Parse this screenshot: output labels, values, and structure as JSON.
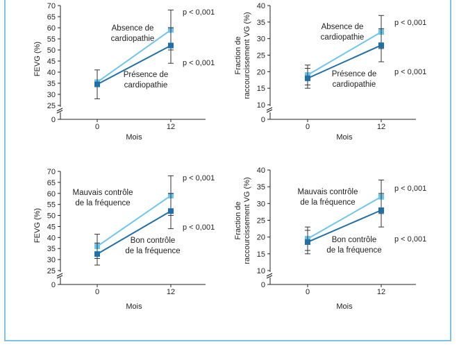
{
  "colors": {
    "light": "#6cc5ec",
    "dark": "#1f6fa8",
    "border": "#7cc4e4",
    "axis": "#222222"
  },
  "caption": "",
  "chart_data": [
    {
      "type": "line",
      "ylabel": "FEVG (%)",
      "xlabel": "Mois",
      "categories": [
        "0",
        "12"
      ],
      "ylim": [
        25,
        70
      ],
      "yticks": [
        25,
        30,
        35,
        40,
        45,
        50,
        55,
        60,
        65,
        70
      ],
      "axis_break": true,
      "series": [
        {
          "name": "Absence de cardiopathie",
          "color": "light",
          "values": [
            35.5,
            59
          ],
          "errors": [
            null,
            9
          ]
        },
        {
          "name": "Présence de cardiopathie",
          "color": "dark",
          "values": [
            34.5,
            52
          ],
          "errors": [
            6.5,
            8
          ]
        }
      ],
      "annotations": {
        "light": [
          "Absence de",
          "cardiopathie"
        ],
        "dark": [
          "Présence de",
          "cardiopathie"
        ]
      },
      "pvalues": [
        "p < 0,001",
        "p < 0,001"
      ]
    },
    {
      "type": "line",
      "ylabel": "Fraction de raccourcissement VG (%)",
      "xlabel": "Mois",
      "categories": [
        "0",
        "12"
      ],
      "ylim": [
        10,
        40
      ],
      "yticks": [
        10,
        15,
        20,
        25,
        30,
        35,
        40
      ],
      "axis_break": true,
      "series": [
        {
          "name": "Absence de cardiopathie",
          "color": "light",
          "values": [
            19,
            32
          ],
          "errors": [
            3,
            5
          ]
        },
        {
          "name": "Présence de cardiopathie",
          "color": "dark",
          "values": [
            18,
            28
          ],
          "errors": [
            3,
            5
          ]
        }
      ],
      "annotations": {
        "light": [
          "Absence de",
          "cardiopathie"
        ],
        "dark": [
          "Présence de",
          "cardiopathie"
        ]
      },
      "pvalues": [
        "p < 0,001",
        "p < 0,001"
      ]
    },
    {
      "type": "line",
      "ylabel": "FEVG (%)",
      "xlabel": "Mois",
      "categories": [
        "0",
        "12"
      ],
      "ylim": [
        25,
        70
      ],
      "yticks": [
        25,
        30,
        35,
        40,
        45,
        50,
        55,
        60,
        65,
        70
      ],
      "axis_break": true,
      "series": [
        {
          "name": "Mauvais contrôle de la fréquence",
          "color": "light",
          "values": [
            36,
            59
          ],
          "errors": [
            5.5,
            9
          ]
        },
        {
          "name": "Bon contrôle de la fréquence",
          "color": "dark",
          "values": [
            32.5,
            52
          ],
          "errors": [
            5,
            8
          ]
        }
      ],
      "annotations": {
        "light": [
          "Mauvais contrôle",
          "de la fréquence"
        ],
        "dark": [
          "Bon contrôle",
          "de la fréquence"
        ]
      },
      "pvalues": [
        "p < 0,001",
        "p < 0,001"
      ]
    },
    {
      "type": "line",
      "ylabel": "Fraction de raccourcissement VG (%)",
      "xlabel": "Mois",
      "categories": [
        "0",
        "12"
      ],
      "ylim": [
        10,
        40
      ],
      "yticks": [
        10,
        15,
        20,
        25,
        30,
        35,
        40
      ],
      "axis_break": true,
      "series": [
        {
          "name": "Mauvais contrôle de la fréquence",
          "color": "light",
          "values": [
            19.5,
            32
          ],
          "errors": [
            3.5,
            5
          ]
        },
        {
          "name": "Bon contrôle de la fréquence",
          "color": "dark",
          "values": [
            18.5,
            28
          ],
          "errors": [
            3.5,
            5
          ]
        }
      ],
      "annotations": {
        "light": [
          "Mauvais contrôle",
          "de la fréquence"
        ],
        "dark": [
          "Bon contrôle",
          "de la fréquence"
        ]
      },
      "pvalues": [
        "p < 0,001",
        "p < 0,001"
      ]
    }
  ]
}
